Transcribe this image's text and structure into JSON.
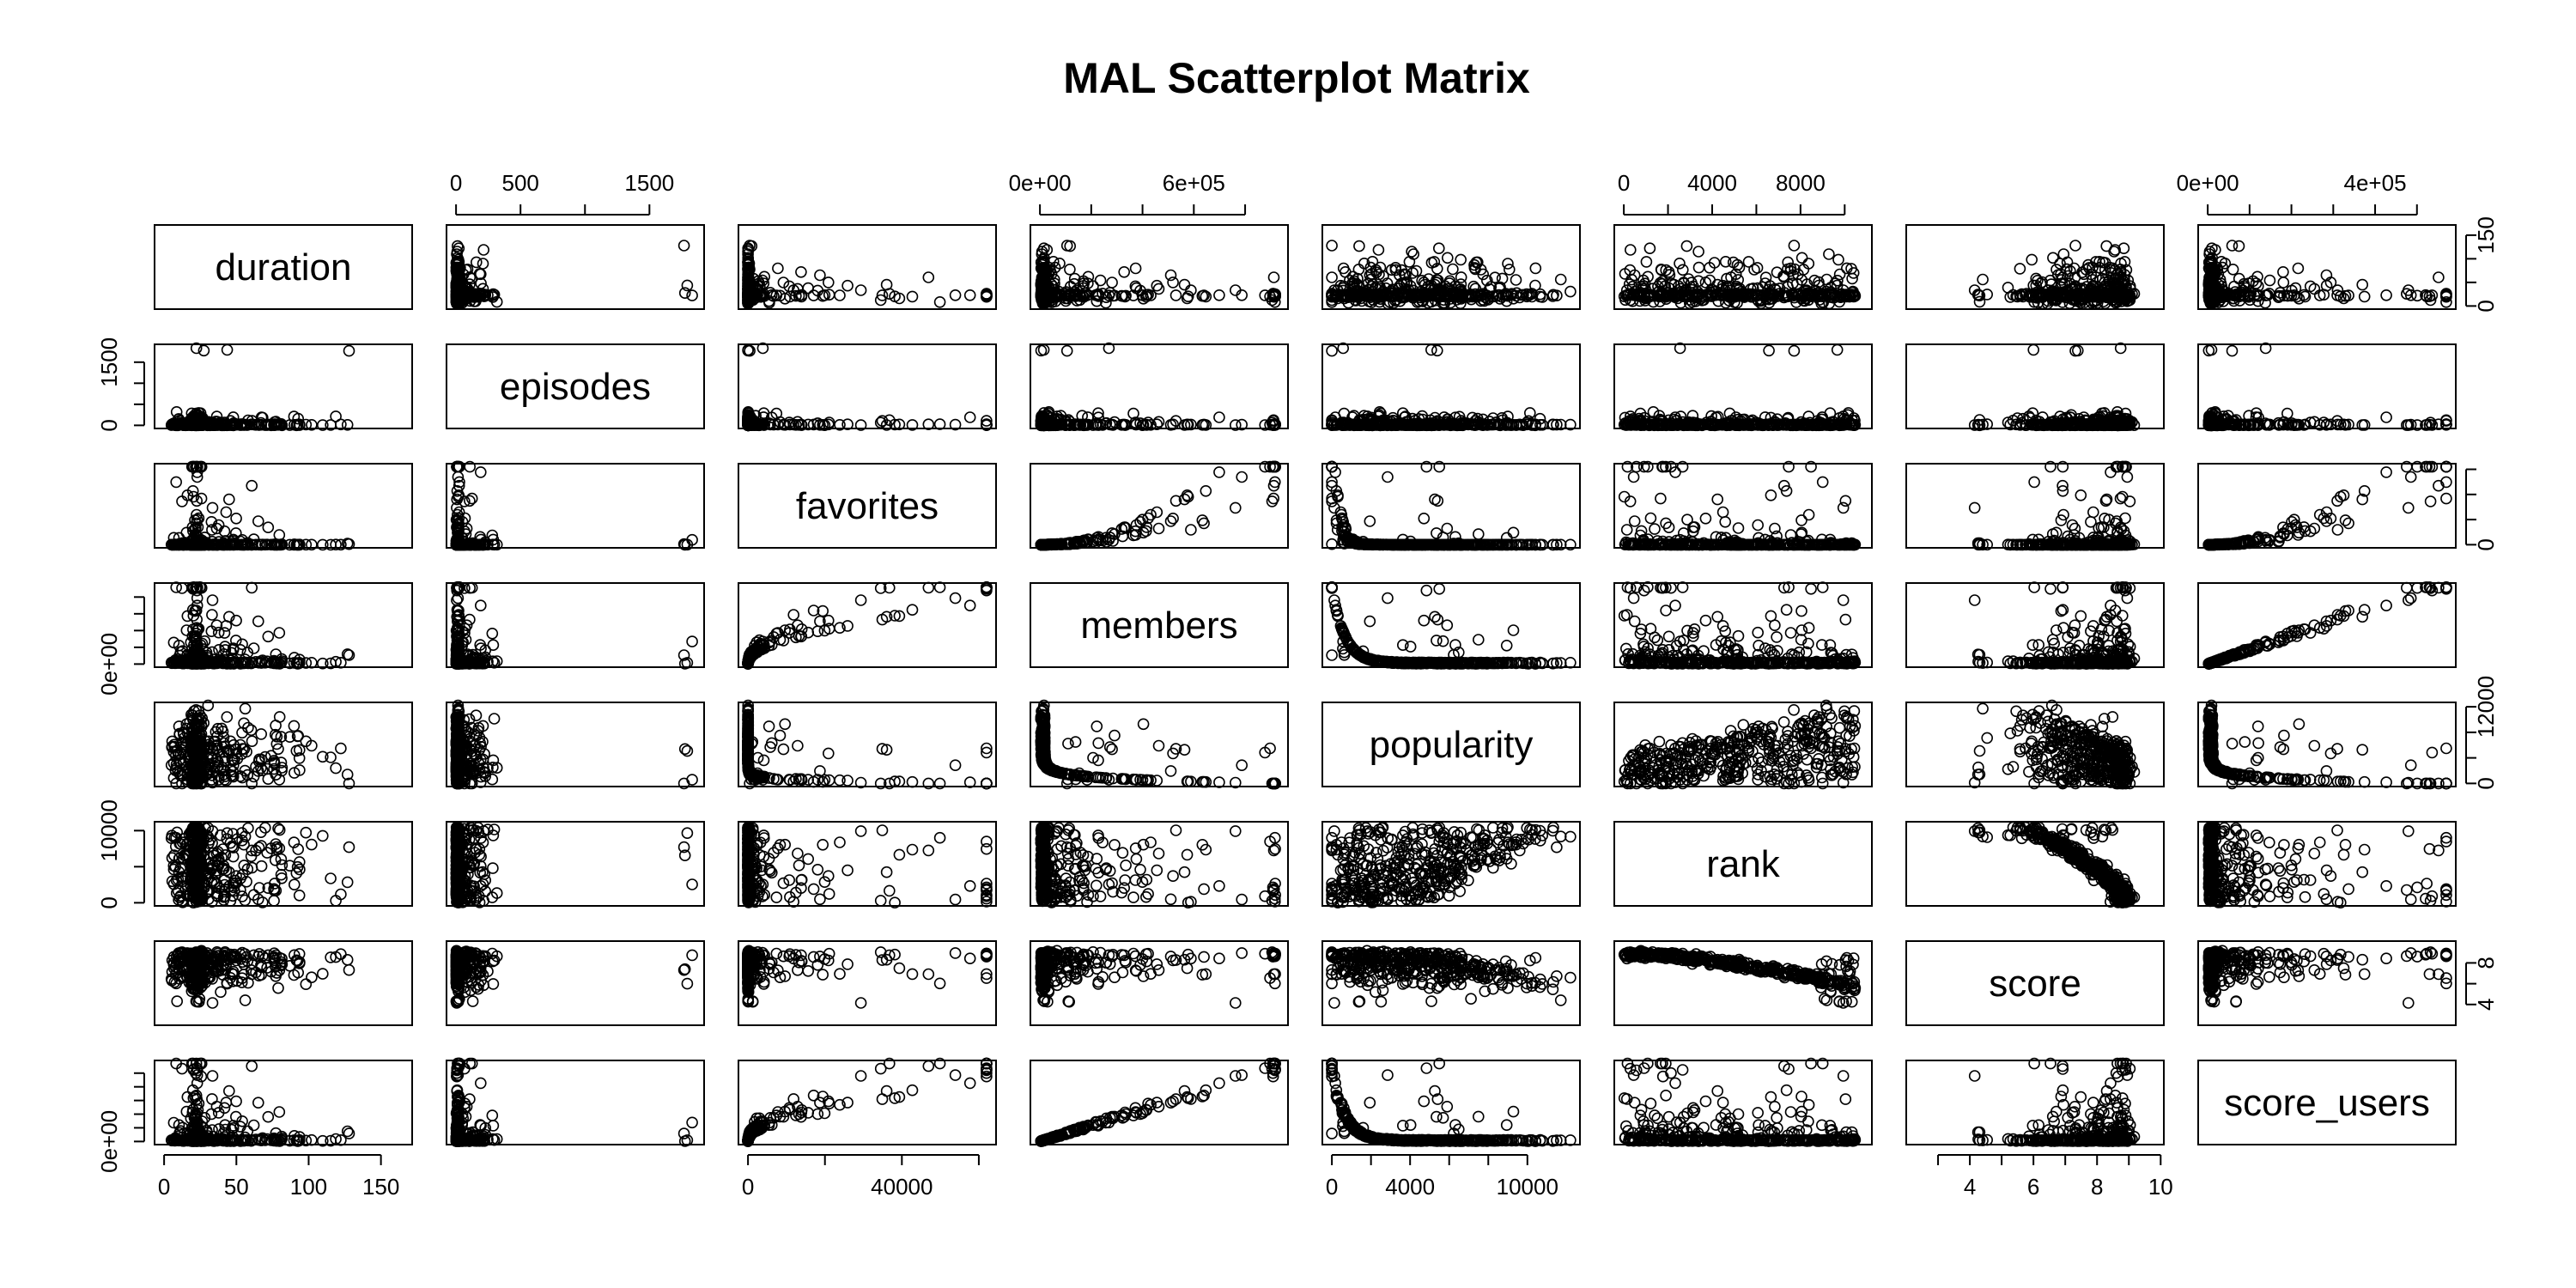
{
  "chart_data": {
    "type": "scatter",
    "title": "MAL Scatterplot Matrix",
    "variables": [
      "duration",
      "episodes",
      "favorites",
      "members",
      "popularity",
      "rank",
      "score",
      "score_users"
    ],
    "ranges": {
      "duration": [
        0,
        165
      ],
      "episodes": [
        0,
        1850
      ],
      "favorites": [
        0,
        62000
      ],
      "members": [
        0,
        930000
      ],
      "popularity": [
        0,
        12200
      ],
      "rank": [
        0,
        10800
      ],
      "score": [
        2.3,
        9.8
      ],
      "score_users": [
        0,
        570000
      ]
    },
    "ticks": {
      "duration": {
        "side": "bottom",
        "values": [
          0,
          50,
          100,
          150
        ],
        "labels": [
          "0",
          "50",
          "100",
          "150"
        ]
      },
      "episodes": {
        "side": "top",
        "values": [
          0,
          500,
          1000,
          1500
        ],
        "labels": [
          "0",
          "500",
          "",
          "1500"
        ]
      },
      "favorites": {
        "side": "bottom",
        "values": [
          0,
          20000,
          40000,
          60000
        ],
        "labels": [
          "0",
          "",
          "40000",
          ""
        ]
      },
      "members": {
        "side": "top",
        "values": [
          0,
          200000,
          400000,
          600000,
          800000
        ],
        "labels": [
          "0e+00",
          "",
          "",
          "6e+05",
          ""
        ]
      },
      "popularity": {
        "side": "bottom",
        "values": [
          0,
          2000,
          4000,
          6000,
          8000,
          10000
        ],
        "labels": [
          "0",
          "",
          "4000",
          "",
          "",
          "10000"
        ]
      },
      "rank": {
        "side": "top",
        "values": [
          0,
          2000,
          4000,
          6000,
          8000,
          10000
        ],
        "labels": [
          "0",
          "",
          "4000",
          "",
          "8000",
          ""
        ]
      },
      "score": {
        "side": "bottom",
        "values": [
          3,
          4,
          5,
          6,
          7,
          8,
          9,
          10
        ],
        "labels": [
          "",
          "4",
          "",
          "6",
          "",
          "8",
          "",
          "10"
        ]
      },
      "score_users": {
        "side": "top",
        "values": [
          0,
          100000,
          200000,
          300000,
          400000,
          500000
        ],
        "labels": [
          "0e+00",
          "",
          "",
          "",
          "4e+05",
          ""
        ]
      }
    },
    "y_ticks": {
      "duration": {
        "side": "right",
        "values": [
          0,
          50,
          100,
          150
        ],
        "labels": [
          "0",
          "",
          "",
          "150"
        ]
      },
      "episodes": {
        "side": "left",
        "values": [
          0,
          500,
          1000,
          1500
        ],
        "labels": [
          "0",
          "",
          "",
          "1500"
        ]
      },
      "favorites": {
        "side": "right",
        "values": [
          0,
          20000,
          40000,
          60000
        ],
        "labels": [
          "0",
          "",
          "",
          ""
        ]
      },
      "members": {
        "side": "left",
        "values": [
          0,
          200000,
          400000,
          600000,
          800000
        ],
        "labels": [
          "0e+00",
          "",
          "",
          "",
          ""
        ]
      },
      "popularity": {
        "side": "right",
        "values": [
          0,
          4000,
          8000,
          12000
        ],
        "labels": [
          "0",
          "",
          "",
          "12000"
        ]
      },
      "rank": {
        "side": "left",
        "values": [
          0,
          5000,
          10000
        ],
        "labels": [
          "0",
          "",
          "10000"
        ]
      },
      "score": {
        "side": "right",
        "values": [
          4,
          6,
          8
        ],
        "labels": [
          "4",
          "",
          "8"
        ]
      },
      "score_users": {
        "side": "left",
        "values": [
          0,
          100000,
          200000,
          300000,
          400000,
          500000
        ],
        "labels": [
          "0e+00",
          "",
          "",
          "",
          "",
          ""
        ]
      }
    },
    "grid": false,
    "legend": "none"
  }
}
